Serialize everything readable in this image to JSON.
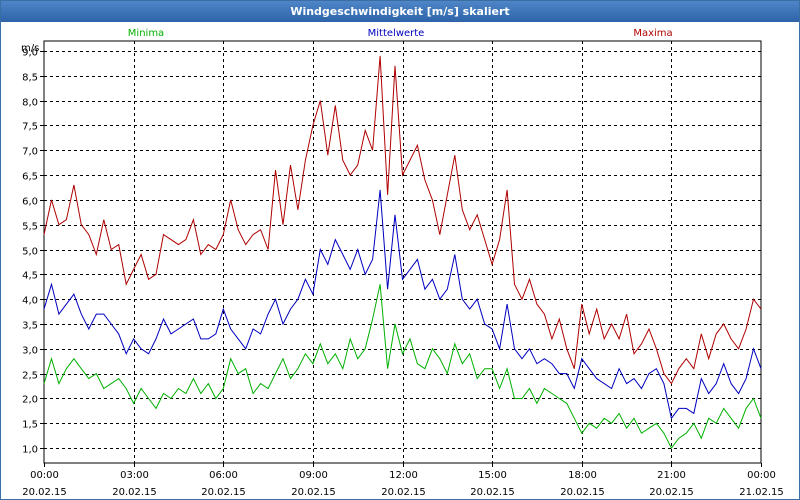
{
  "window": {
    "title": "Windgeschwindigkeit [m/s] skaliert"
  },
  "chart_data": {
    "type": "line",
    "title": "Windgeschwindigkeit [m/s] skaliert",
    "ylabel": "m/s",
    "xlabel": "",
    "ylim": [
      0.7,
      9.2
    ],
    "yticks": [
      "1,0",
      "1,5",
      "2,0",
      "2,5",
      "3,0",
      "3,5",
      "4,0",
      "4,5",
      "5,0",
      "5,5",
      "6,0",
      "6,5",
      "7,0",
      "7,5",
      "8,0",
      "8,5",
      "9,0"
    ],
    "xlim_hours": [
      0,
      24
    ],
    "xticks": [
      {
        "hour": 0,
        "time": "00:00",
        "date": "20.02.15"
      },
      {
        "hour": 3,
        "time": "03:00",
        "date": "20.02.15"
      },
      {
        "hour": 6,
        "time": "06:00",
        "date": "20.02.15"
      },
      {
        "hour": 9,
        "time": "09:00",
        "date": "20.02.15"
      },
      {
        "hour": 12,
        "time": "12:00",
        "date": "20.02.15"
      },
      {
        "hour": 15,
        "time": "15:00",
        "date": "20.02.15"
      },
      {
        "hour": 18,
        "time": "18:00",
        "date": "20.02.15"
      },
      {
        "hour": 21,
        "time": "21:00",
        "date": "20.02.15"
      },
      {
        "hour": 24,
        "time": "00:00",
        "date": "21.02.15"
      }
    ],
    "grid": true,
    "legend_position": "top",
    "series": [
      {
        "name": "Minima",
        "color": "#00b000",
        "points": [
          [
            0,
            2.3
          ],
          [
            0.25,
            2.8
          ],
          [
            0.5,
            2.3
          ],
          [
            0.75,
            2.6
          ],
          [
            1,
            2.8
          ],
          [
            1.25,
            2.6
          ],
          [
            1.5,
            2.4
          ],
          [
            1.75,
            2.5
          ],
          [
            2,
            2.2
          ],
          [
            2.25,
            2.3
          ],
          [
            2.5,
            2.4
          ],
          [
            2.75,
            2.2
          ],
          [
            3,
            1.9
          ],
          [
            3.25,
            2.2
          ],
          [
            3.5,
            2.0
          ],
          [
            3.75,
            1.8
          ],
          [
            4,
            2.1
          ],
          [
            4.25,
            2.0
          ],
          [
            4.5,
            2.2
          ],
          [
            4.75,
            2.1
          ],
          [
            5,
            2.4
          ],
          [
            5.25,
            2.1
          ],
          [
            5.5,
            2.3
          ],
          [
            5.75,
            2.0
          ],
          [
            6,
            2.2
          ],
          [
            6.25,
            2.8
          ],
          [
            6.5,
            2.5
          ],
          [
            6.75,
            2.6
          ],
          [
            7,
            2.1
          ],
          [
            7.25,
            2.3
          ],
          [
            7.5,
            2.2
          ],
          [
            7.75,
            2.5
          ],
          [
            8,
            2.8
          ],
          [
            8.25,
            2.4
          ],
          [
            8.5,
            2.6
          ],
          [
            8.75,
            2.9
          ],
          [
            9,
            2.7
          ],
          [
            9.25,
            3.1
          ],
          [
            9.5,
            2.7
          ],
          [
            9.75,
            2.9
          ],
          [
            10,
            2.6
          ],
          [
            10.25,
            3.2
          ],
          [
            10.5,
            2.8
          ],
          [
            10.75,
            3.0
          ],
          [
            11,
            3.6
          ],
          [
            11.25,
            4.3
          ],
          [
            11.5,
            2.6
          ],
          [
            11.75,
            3.5
          ],
          [
            12,
            2.9
          ],
          [
            12.25,
            3.2
          ],
          [
            12.5,
            2.7
          ],
          [
            12.75,
            2.6
          ],
          [
            13,
            3.0
          ],
          [
            13.25,
            2.8
          ],
          [
            13.5,
            2.5
          ],
          [
            13.75,
            3.1
          ],
          [
            14,
            2.7
          ],
          [
            14.25,
            2.9
          ],
          [
            14.5,
            2.4
          ],
          [
            14.75,
            2.6
          ],
          [
            15,
            2.6
          ],
          [
            15.25,
            2.2
          ],
          [
            15.5,
            2.6
          ],
          [
            15.75,
            2.0
          ],
          [
            16,
            2.0
          ],
          [
            16.25,
            2.2
          ],
          [
            16.5,
            1.9
          ],
          [
            16.75,
            2.2
          ],
          [
            17,
            2.1
          ],
          [
            17.25,
            2.0
          ],
          [
            17.5,
            1.9
          ],
          [
            17.75,
            1.6
          ],
          [
            18,
            1.3
          ],
          [
            18.25,
            1.5
          ],
          [
            18.5,
            1.4
          ],
          [
            18.75,
            1.6
          ],
          [
            19,
            1.5
          ],
          [
            19.25,
            1.7
          ],
          [
            19.5,
            1.4
          ],
          [
            19.75,
            1.6
          ],
          [
            20,
            1.3
          ],
          [
            20.25,
            1.4
          ],
          [
            20.5,
            1.5
          ],
          [
            20.75,
            1.3
          ],
          [
            21,
            1.0
          ],
          [
            21.25,
            1.2
          ],
          [
            21.5,
            1.3
          ],
          [
            21.75,
            1.5
          ],
          [
            22,
            1.2
          ],
          [
            22.25,
            1.6
          ],
          [
            22.5,
            1.5
          ],
          [
            22.75,
            1.8
          ],
          [
            23,
            1.6
          ],
          [
            23.25,
            1.4
          ],
          [
            23.5,
            1.8
          ],
          [
            23.75,
            2.0
          ],
          [
            24,
            1.6
          ]
        ]
      },
      {
        "name": "Mittelwerte",
        "color": "#0000c0",
        "points": [
          [
            0,
            3.8
          ],
          [
            0.25,
            4.3
          ],
          [
            0.5,
            3.7
          ],
          [
            0.75,
            3.9
          ],
          [
            1,
            4.1
          ],
          [
            1.25,
            3.7
          ],
          [
            1.5,
            3.4
          ],
          [
            1.75,
            3.7
          ],
          [
            2,
            3.7
          ],
          [
            2.25,
            3.5
          ],
          [
            2.5,
            3.3
          ],
          [
            2.75,
            2.9
          ],
          [
            3,
            3.2
          ],
          [
            3.25,
            3.0
          ],
          [
            3.5,
            2.9
          ],
          [
            3.75,
            3.2
          ],
          [
            4,
            3.6
          ],
          [
            4.25,
            3.3
          ],
          [
            4.5,
            3.4
          ],
          [
            4.75,
            3.5
          ],
          [
            5,
            3.6
          ],
          [
            5.25,
            3.2
          ],
          [
            5.5,
            3.2
          ],
          [
            5.75,
            3.3
          ],
          [
            6,
            3.8
          ],
          [
            6.25,
            3.4
          ],
          [
            6.5,
            3.2
          ],
          [
            6.75,
            3.0
          ],
          [
            7,
            3.4
          ],
          [
            7.25,
            3.3
          ],
          [
            7.5,
            3.7
          ],
          [
            7.75,
            4.0
          ],
          [
            8,
            3.5
          ],
          [
            8.25,
            3.8
          ],
          [
            8.5,
            4.0
          ],
          [
            8.75,
            4.4
          ],
          [
            9,
            4.1
          ],
          [
            9.25,
            5.0
          ],
          [
            9.5,
            4.7
          ],
          [
            9.75,
            5.2
          ],
          [
            10,
            4.9
          ],
          [
            10.25,
            4.6
          ],
          [
            10.5,
            5.0
          ],
          [
            10.75,
            4.5
          ],
          [
            11,
            4.8
          ],
          [
            11.25,
            6.2
          ],
          [
            11.5,
            4.2
          ],
          [
            11.75,
            5.7
          ],
          [
            12,
            4.4
          ],
          [
            12.25,
            4.6
          ],
          [
            12.5,
            4.8
          ],
          [
            12.75,
            4.2
          ],
          [
            13,
            4.4
          ],
          [
            13.25,
            4.0
          ],
          [
            13.5,
            4.2
          ],
          [
            13.75,
            4.9
          ],
          [
            14,
            4.0
          ],
          [
            14.25,
            3.8
          ],
          [
            14.5,
            4.0
          ],
          [
            14.75,
            3.5
          ],
          [
            15,
            3.4
          ],
          [
            15.25,
            3.0
          ],
          [
            15.5,
            3.9
          ],
          [
            15.75,
            3.0
          ],
          [
            16,
            2.8
          ],
          [
            16.25,
            3.0
          ],
          [
            16.5,
            2.7
          ],
          [
            16.75,
            2.8
          ],
          [
            17,
            2.7
          ],
          [
            17.25,
            2.5
          ],
          [
            17.5,
            2.5
          ],
          [
            17.75,
            2.2
          ],
          [
            18,
            2.8
          ],
          [
            18.25,
            2.6
          ],
          [
            18.5,
            2.4
          ],
          [
            18.75,
            2.3
          ],
          [
            19,
            2.2
          ],
          [
            19.25,
            2.6
          ],
          [
            19.5,
            2.3
          ],
          [
            19.75,
            2.4
          ],
          [
            20,
            2.2
          ],
          [
            20.25,
            2.5
          ],
          [
            20.5,
            2.6
          ],
          [
            20.75,
            2.3
          ],
          [
            21,
            1.6
          ],
          [
            21.25,
            1.8
          ],
          [
            21.5,
            1.8
          ],
          [
            21.75,
            1.7
          ],
          [
            22,
            2.4
          ],
          [
            22.25,
            2.1
          ],
          [
            22.5,
            2.3
          ],
          [
            22.75,
            2.7
          ],
          [
            23,
            2.3
          ],
          [
            23.25,
            2.1
          ],
          [
            23.5,
            2.4
          ],
          [
            23.75,
            3.0
          ],
          [
            24,
            2.6
          ]
        ]
      },
      {
        "name": "Maxima",
        "color": "#b00000",
        "points": [
          [
            0,
            5.3
          ],
          [
            0.25,
            6.0
          ],
          [
            0.5,
            5.5
          ],
          [
            0.75,
            5.6
          ],
          [
            1,
            6.3
          ],
          [
            1.25,
            5.5
          ],
          [
            1.5,
            5.3
          ],
          [
            1.75,
            4.9
          ],
          [
            2,
            5.6
          ],
          [
            2.25,
            5.0
          ],
          [
            2.5,
            5.1
          ],
          [
            2.75,
            4.3
          ],
          [
            3,
            4.6
          ],
          [
            3.25,
            4.9
          ],
          [
            3.5,
            4.4
          ],
          [
            3.75,
            4.5
          ],
          [
            4,
            5.3
          ],
          [
            4.25,
            5.2
          ],
          [
            4.5,
            5.1
          ],
          [
            4.75,
            5.2
          ],
          [
            5,
            5.6
          ],
          [
            5.25,
            4.9
          ],
          [
            5.5,
            5.1
          ],
          [
            5.75,
            5.0
          ],
          [
            6,
            5.3
          ],
          [
            6.25,
            6.0
          ],
          [
            6.5,
            5.4
          ],
          [
            6.75,
            5.1
          ],
          [
            7,
            5.3
          ],
          [
            7.25,
            5.4
          ],
          [
            7.5,
            5.0
          ],
          [
            7.75,
            6.6
          ],
          [
            8,
            5.5
          ],
          [
            8.25,
            6.7
          ],
          [
            8.5,
            5.8
          ],
          [
            8.75,
            6.8
          ],
          [
            9,
            7.5
          ],
          [
            9.25,
            8.0
          ],
          [
            9.5,
            6.9
          ],
          [
            9.75,
            7.9
          ],
          [
            10,
            6.8
          ],
          [
            10.25,
            6.5
          ],
          [
            10.5,
            6.7
          ],
          [
            10.75,
            7.4
          ],
          [
            11,
            7.0
          ],
          [
            11.25,
            8.9
          ],
          [
            11.5,
            6.1
          ],
          [
            11.75,
            8.7
          ],
          [
            12,
            6.5
          ],
          [
            12.25,
            6.8
          ],
          [
            12.5,
            7.1
          ],
          [
            12.75,
            6.4
          ],
          [
            13,
            6.0
          ],
          [
            13.25,
            5.3
          ],
          [
            13.75,
            6.9
          ],
          [
            14,
            5.8
          ],
          [
            14.25,
            5.4
          ],
          [
            14.5,
            5.7
          ],
          [
            14.75,
            5.2
          ],
          [
            15,
            4.7
          ],
          [
            15.25,
            5.2
          ],
          [
            15.5,
            6.2
          ],
          [
            15.75,
            4.3
          ],
          [
            16,
            4.0
          ],
          [
            16.25,
            4.4
          ],
          [
            16.5,
            3.9
          ],
          [
            16.75,
            3.7
          ],
          [
            17,
            3.2
          ],
          [
            17.25,
            3.6
          ],
          [
            17.5,
            3.0
          ],
          [
            17.75,
            2.6
          ],
          [
            18,
            3.9
          ],
          [
            18.25,
            3.3
          ],
          [
            18.5,
            3.8
          ],
          [
            18.75,
            3.2
          ],
          [
            19,
            3.5
          ],
          [
            19.25,
            3.2
          ],
          [
            19.5,
            3.7
          ],
          [
            19.75,
            2.9
          ],
          [
            20,
            3.1
          ],
          [
            20.25,
            3.4
          ],
          [
            20.5,
            3.0
          ],
          [
            20.75,
            2.5
          ],
          [
            21,
            2.3
          ],
          [
            21.25,
            2.6
          ],
          [
            21.5,
            2.8
          ],
          [
            21.75,
            2.6
          ],
          [
            22,
            3.3
          ],
          [
            22.25,
            2.8
          ],
          [
            22.5,
            3.3
          ],
          [
            22.75,
            3.5
          ],
          [
            23,
            3.2
          ],
          [
            23.25,
            3.0
          ],
          [
            23.5,
            3.4
          ],
          [
            23.75,
            4.0
          ],
          [
            24,
            3.8
          ]
        ]
      }
    ]
  }
}
